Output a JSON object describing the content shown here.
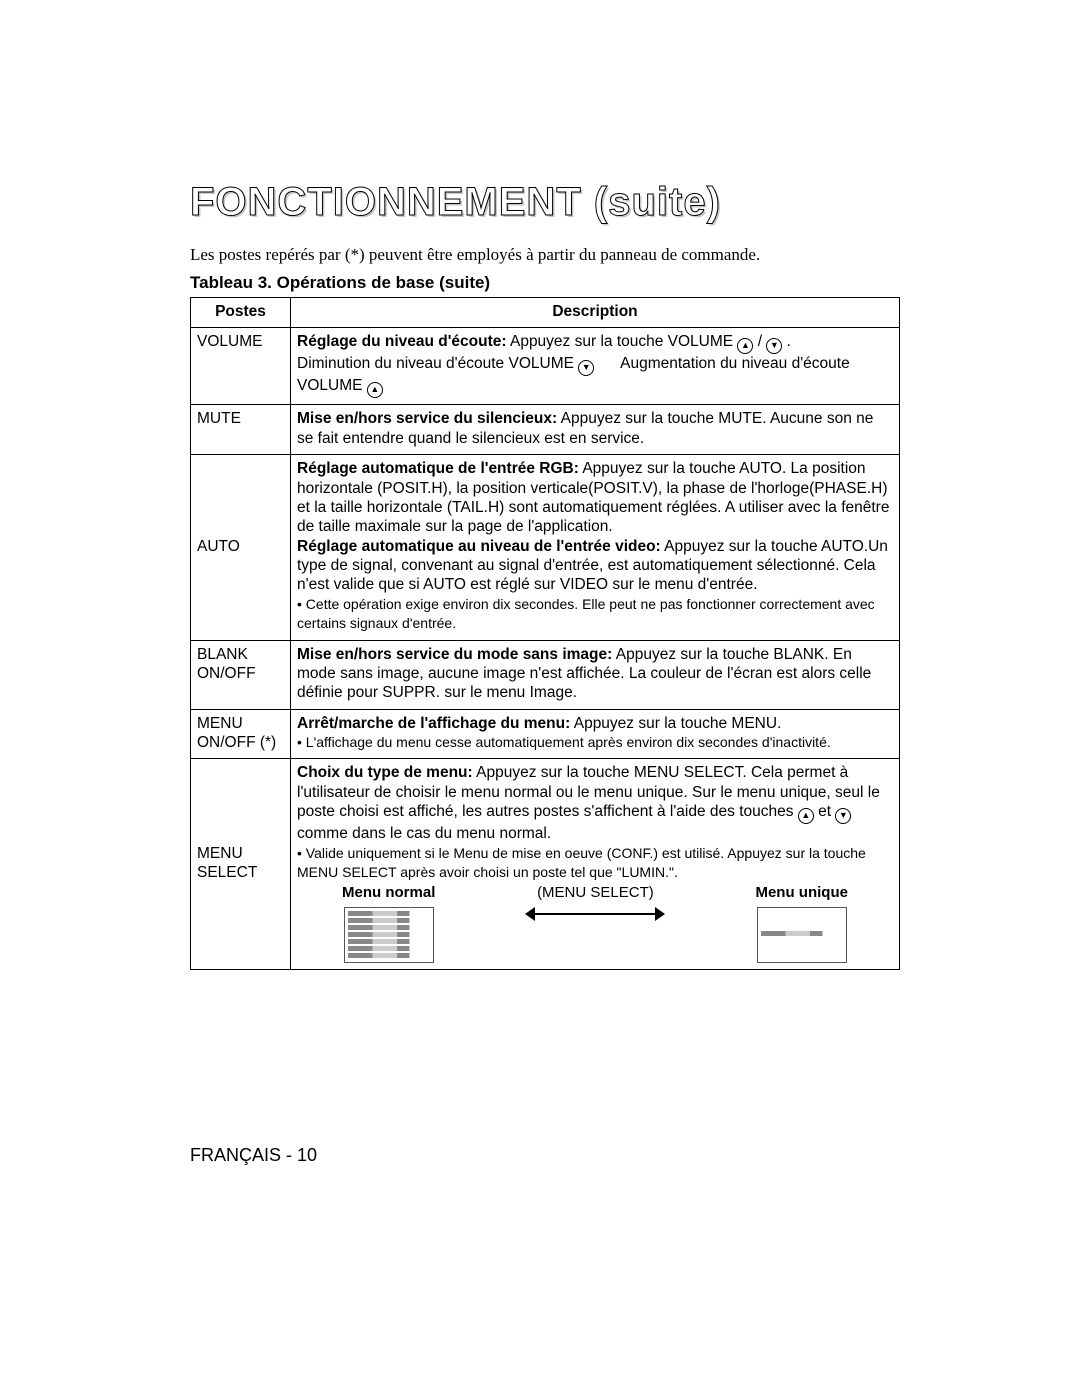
{
  "title_main": "FONCTIONNEMENT",
  "title_suffix": "(suite)",
  "intro": "Les postes repérés par (*) peuvent être employés à partir du panneau de commande.",
  "table_caption": "Tableau 3. Opérations de base (suite)",
  "headers": {
    "col1": "Postes",
    "col2": "Description"
  },
  "rows": {
    "volume": {
      "label": "VOLUME",
      "d1_b": "Réglage du niveau d'écoute:",
      "d1": " Appuyez sur la touche VOLUME ",
      "d1_tail": " .",
      "d2a": "Diminution du niveau d'écoute VOLUME",
      "d2b": "Augmentation du niveau d'écoute VOLUME"
    },
    "mute": {
      "label": "MUTE",
      "d1_b": "Mise en/hors service du silencieux:",
      "d1": " Appuyez sur la touche MUTE. Aucune son ne se fait entendre quand le silencieux est en service."
    },
    "auto": {
      "label": "AUTO",
      "p1_b": "Réglage automatique de l'entrée RGB:",
      "p1": " Appuyez sur la touche AUTO. La position horizontale (POSIT.H), la position verticale(POSIT.V), la phase de l'horloge(PHASE.H) et la taille horizontale (TAIL.H) sont automatiquement réglées. A utiliser avec la fenêtre de taille maximale sur la page de l'application.",
      "p2_b": "Réglage automatique au niveau de l'entrée video:",
      "p2": " Appuyez sur la touche AUTO.Un type de signal, convenant au signal d'entrée, est automatiquement sélectionné. Cela n'est valide que si AUTO est réglé sur VIDEO sur le menu d'entrée.",
      "note": "• Cette opération exige environ dix secondes. Elle peut ne pas fonctionner correctement avec certains signaux d'entrée."
    },
    "blank": {
      "label": "BLANK ON/OFF",
      "d_b": "Mise en/hors service du mode sans image:",
      "d": " Appuyez sur la touche BLANK. En mode sans image, aucune image n'est affichée. La couleur de l'écran est alors celle définie pour SUPPR. sur le menu Image."
    },
    "menu_onoff": {
      "label": "MENU ON/OFF (*)",
      "d_b": "Arrêt/marche de l'affichage du menu:",
      "d": " Appuyez sur la touche MENU.",
      "note": "• L'affichage du menu cesse automatiquement après environ dix secondes d'inactivité."
    },
    "menu_select": {
      "label": "MENU SELECT",
      "d_b": "Choix du type de menu:",
      "d1": " Appuyez sur la touche MENU SELECT. Cela permet à l'utilisateur de choisir le menu normal ou le menu unique. Sur le menu unique, seul le poste choisi est affiché, les autres postes s'affichent à l'aide des touches ",
      "d2": " et ",
      "d3": " comme dans le cas du menu normal.",
      "note": "• Valide uniquement si le Menu de mise en oeuve (CONF.) est utilisé. Appuyez sur la touche MENU SELECT après avoir choisi un poste tel que \"LUMIN.\".",
      "menu_normal": "Menu normal",
      "menu_select_lbl": "(MENU SELECT)",
      "menu_unique": "Menu unique"
    }
  },
  "footer": "FRANÇAIS - 10",
  "icons": {
    "up": "▲",
    "down": "▼",
    "slash": " / "
  }
}
